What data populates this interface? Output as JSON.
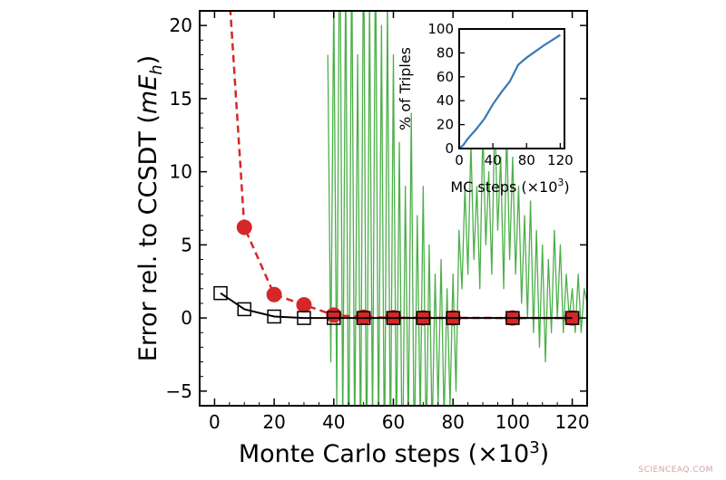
{
  "chart_data": [
    {
      "type": "line",
      "xlabel": "Monte Carlo steps (×10",
      "xlabel_sup": "3",
      "xlabel_end": ")",
      "ylabel_pre": "Error rel. to CCSDT (",
      "ylabel_m": "mE",
      "ylabel_sub": "h",
      "ylabel_end": ")",
      "xlim": [
        -5,
        125
      ],
      "ylim": [
        -6,
        21
      ],
      "xticks": [
        0,
        20,
        40,
        60,
        80,
        100,
        120
      ],
      "yticks": [
        -5,
        0,
        5,
        10,
        15,
        20
      ],
      "grid": false,
      "series": [
        {
          "style": "green noisy trace",
          "color": "#4daf4a",
          "x": [
            38,
            39,
            40,
            41,
            42,
            43,
            44,
            45,
            46,
            47,
            48,
            49,
            50,
            51,
            52,
            53,
            54,
            55,
            56,
            57,
            58,
            59,
            60,
            61,
            62,
            63,
            64,
            65,
            66,
            67,
            68,
            69,
            70,
            71,
            72,
            73,
            74,
            75,
            76,
            77,
            78,
            79,
            80,
            81,
            82,
            83,
            84,
            85,
            86,
            87,
            88,
            89,
            90,
            91,
            92,
            93,
            94,
            95,
            96,
            97,
            98,
            99,
            100,
            101,
            102,
            103,
            104,
            105,
            106,
            107,
            108,
            109,
            110,
            111,
            112,
            113,
            114,
            115,
            116,
            117,
            118,
            119,
            120,
            121,
            122,
            123,
            124,
            125
          ],
          "y": [
            18,
            -3,
            22,
            -6,
            30,
            -8,
            24,
            -12,
            26,
            -9,
            18,
            -10,
            28,
            -12,
            22,
            -8,
            26,
            -9,
            20,
            -11,
            22,
            -10,
            18,
            -9,
            12,
            -12,
            9,
            -8,
            14,
            -10,
            7,
            -7,
            9,
            -9,
            5,
            -8,
            3,
            -6,
            4,
            -7,
            2,
            -6,
            3,
            -5,
            6,
            2,
            9,
            3,
            12,
            4,
            9,
            2,
            13,
            5,
            10,
            3,
            14,
            6,
            11,
            2,
            13,
            4,
            11,
            3,
            9,
            1,
            7,
            0,
            8,
            -1,
            6,
            -2,
            5,
            -3,
            4,
            -1,
            6,
            0,
            5,
            -1,
            3,
            0,
            2,
            -1,
            3,
            -1,
            2,
            1
          ]
        },
        {
          "style": "red dashed circles",
          "color": "#d62728",
          "x": [
            5,
            10,
            20,
            30,
            40,
            50,
            60,
            70,
            80,
            100,
            120
          ],
          "y": [
            22,
            6.2,
            1.6,
            0.9,
            0.2,
            0.05,
            0.02,
            0.01,
            0.01,
            0.0,
            0.0
          ]
        },
        {
          "style": "black solid open squares",
          "color": "#000000",
          "x": [
            2,
            10,
            20,
            30,
            40,
            50,
            60,
            70,
            80,
            100,
            120
          ],
          "y": [
            1.7,
            0.6,
            0.1,
            0.0,
            0.0,
            0.0,
            0.0,
            0.0,
            0.0,
            0.0,
            0.0
          ]
        }
      ]
    },
    {
      "type": "line",
      "xlabel": "MC steps (×10",
      "xlabel_sup": "3",
      "xlabel_end": ")",
      "ylabel": "% of Triples",
      "xlim": [
        0,
        125
      ],
      "ylim": [
        0,
        100
      ],
      "xticks": [
        0,
        40,
        80,
        120
      ],
      "yticks": [
        0,
        20,
        40,
        60,
        80,
        100
      ],
      "series": [
        {
          "color": "#3a78b5",
          "x": [
            0,
            5,
            10,
            20,
            30,
            40,
            50,
            60,
            70,
            80,
            100,
            120
          ],
          "y": [
            0,
            3,
            8,
            16,
            25,
            37,
            47,
            56,
            70,
            76,
            86,
            95
          ]
        }
      ]
    }
  ],
  "watermark": "SCIENCEAQ.COM"
}
